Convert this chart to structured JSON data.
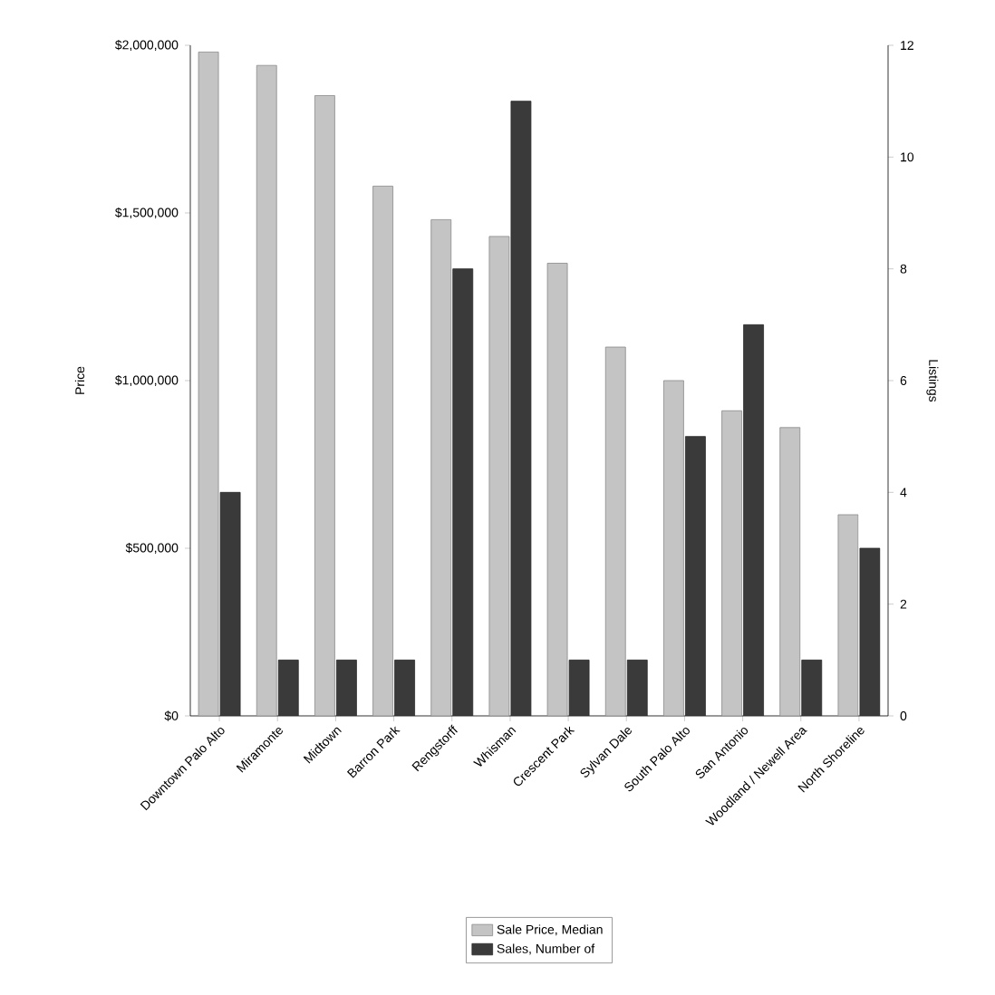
{
  "chart_data": {
    "type": "bar",
    "ylabel": "Price",
    "y2label": "Listings",
    "categories": [
      "Downtown Palo Alto",
      "Miramonte",
      "Midtown",
      "Barron Park",
      "Rengstorff",
      "Whisman",
      "Crescent Park",
      "Sylvan Dale",
      "South Palo Alto",
      "San Antonio",
      "Woodland / Newell Area",
      "North Shoreline"
    ],
    "series": [
      {
        "name": "Sale Price, Median",
        "color": "#c4c4c4",
        "values": [
          1980000,
          1940000,
          1850000,
          1580000,
          1480000,
          1430000,
          1350000,
          1100000,
          1000000,
          910000,
          860000,
          600000
        ]
      },
      {
        "name": "Sales, Number of",
        "color": "#3a3a3a",
        "axis": "y2",
        "values": [
          4,
          1,
          1,
          1,
          8,
          11,
          1,
          1,
          5,
          7,
          1,
          3
        ]
      }
    ],
    "ylim": [
      0,
      2000000
    ],
    "yticks": [
      {
        "value": 0,
        "label": "$0"
      },
      {
        "value": 500000,
        "label": "$500,000"
      },
      {
        "value": 1000000,
        "label": "$1,000,000"
      },
      {
        "value": 1500000,
        "label": "$1,500,000"
      },
      {
        "value": 2000000,
        "label": "$2,000,000"
      }
    ],
    "y2lim": [
      0,
      12
    ],
    "y2ticks": [
      0,
      2,
      4,
      6,
      8,
      10,
      12
    ],
    "legend": "bottom"
  }
}
